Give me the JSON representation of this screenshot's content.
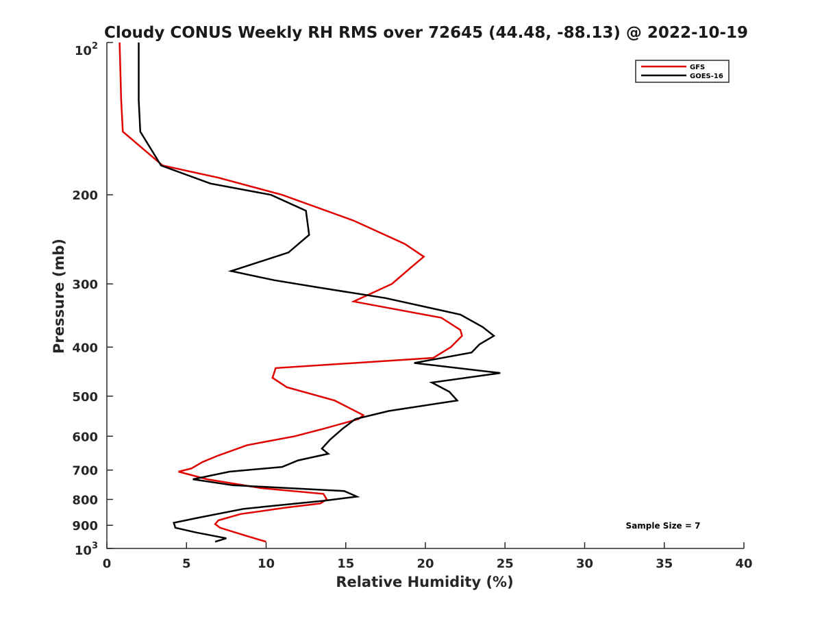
{
  "chart_data": {
    "type": "line",
    "title": "Cloudy CONUS Weekly RH RMS over 72645 (44.48, -88.13) @ 2022-10-19",
    "xlabel": "Relative Humidity (%)",
    "ylabel": "Pressure (mb)",
    "xlim": [
      0,
      40
    ],
    "ylim": [
      100,
      1000
    ],
    "y_scale": "log",
    "y_reversed": true,
    "grid": false,
    "legend_position": "top-right",
    "x_ticks": [
      "0",
      "5",
      "10",
      "15",
      "20",
      "25",
      "30",
      "35",
      "40"
    ],
    "y_ticks": [
      "200",
      "300",
      "400",
      "500",
      "600",
      "700",
      "800",
      "900"
    ],
    "y_edge_labels": {
      "top_base": "10",
      "top_exp": "2",
      "bottom_base": "10",
      "bottom_exp": "3"
    },
    "annotation": "Sample Size = 7",
    "series": [
      {
        "name": "GFS",
        "color": "#e00000",
        "points": [
          [
            0.8,
            100
          ],
          [
            0.9,
            130
          ],
          [
            1.0,
            150
          ],
          [
            3.5,
            175
          ],
          [
            7.0,
            185
          ],
          [
            11.0,
            200
          ],
          [
            15.5,
            225
          ],
          [
            18.7,
            250
          ],
          [
            19.9,
            265
          ],
          [
            19.0,
            280
          ],
          [
            17.9,
            300
          ],
          [
            15.5,
            325
          ],
          [
            21.0,
            350
          ],
          [
            22.2,
            370
          ],
          [
            22.3,
            380
          ],
          [
            21.6,
            400
          ],
          [
            20.5,
            420
          ],
          [
            10.6,
            440
          ],
          [
            10.4,
            460
          ],
          [
            11.3,
            480
          ],
          [
            14.3,
            510
          ],
          [
            16.1,
            545
          ],
          [
            15.8,
            555
          ],
          [
            13.6,
            580
          ],
          [
            11.8,
            600
          ],
          [
            8.8,
            625
          ],
          [
            7.0,
            655
          ],
          [
            6.0,
            675
          ],
          [
            5.3,
            695
          ],
          [
            4.5,
            705
          ],
          [
            6.3,
            730
          ],
          [
            9.7,
            760
          ],
          [
            13.6,
            780
          ],
          [
            13.8,
            800
          ],
          [
            13.4,
            815
          ],
          [
            11.3,
            830
          ],
          [
            8.4,
            855
          ],
          [
            7.0,
            880
          ],
          [
            6.8,
            895
          ],
          [
            7.1,
            910
          ],
          [
            8.8,
            945
          ],
          [
            10.0,
            970
          ]
        ]
      },
      {
        "name": "GOES-16",
        "color": "#000000",
        "points": [
          [
            2.0,
            100
          ],
          [
            2.0,
            130
          ],
          [
            2.1,
            150
          ],
          [
            3.4,
            175
          ],
          [
            6.5,
            190
          ],
          [
            10.3,
            200
          ],
          [
            12.5,
            215
          ],
          [
            12.7,
            240
          ],
          [
            11.4,
            260
          ],
          [
            7.8,
            283
          ],
          [
            10.5,
            295
          ],
          [
            13.3,
            305
          ],
          [
            17.5,
            320
          ],
          [
            22.2,
            345
          ],
          [
            23.6,
            365
          ],
          [
            24.3,
            380
          ],
          [
            23.4,
            395
          ],
          [
            22.9,
            410
          ],
          [
            19.3,
            430
          ],
          [
            24.7,
            450
          ],
          [
            20.4,
            470
          ],
          [
            21.5,
            490
          ],
          [
            22.0,
            510
          ],
          [
            17.7,
            535
          ],
          [
            15.6,
            555
          ],
          [
            14.8,
            580
          ],
          [
            14.0,
            610
          ],
          [
            13.5,
            635
          ],
          [
            13.9,
            650
          ],
          [
            12.0,
            670
          ],
          [
            11.0,
            690
          ],
          [
            7.7,
            705
          ],
          [
            5.4,
            730
          ],
          [
            7.9,
            750
          ],
          [
            14.9,
            770
          ],
          [
            15.7,
            790
          ],
          [
            13.6,
            805
          ],
          [
            8.6,
            835
          ],
          [
            5.7,
            870
          ],
          [
            4.2,
            890
          ],
          [
            4.3,
            910
          ],
          [
            5.6,
            930
          ],
          [
            7.5,
            955
          ],
          [
            6.8,
            970
          ]
        ]
      }
    ]
  }
}
